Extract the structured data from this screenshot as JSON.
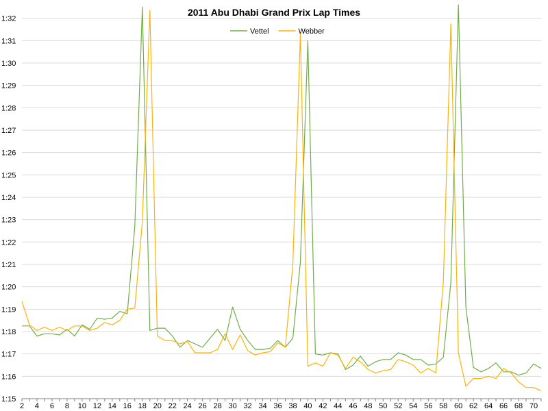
{
  "chart_data": {
    "type": "line",
    "title": "2011 Abu Dhabi Grand Prix Lap Times",
    "xlabel": "",
    "ylabel": "",
    "x_ticks": [
      2,
      4,
      6,
      8,
      10,
      12,
      14,
      16,
      18,
      20,
      22,
      24,
      26,
      28,
      30,
      32,
      34,
      36,
      38,
      40,
      42,
      44,
      46,
      48,
      50,
      52,
      54,
      56,
      58,
      60,
      62,
      64,
      66,
      68,
      70
    ],
    "xlim": [
      2,
      71
    ],
    "y_ticks": [
      "1:15",
      "1:16",
      "1:17",
      "1:18",
      "1:19",
      "1:20",
      "1:21",
      "1:22",
      "1:23",
      "1:24",
      "1:25",
      "1:26",
      "1:27",
      "1:28",
      "1:29",
      "1:30",
      "1:31",
      "1:32"
    ],
    "ylim_seconds": [
      75,
      92.6
    ],
    "y_unit": "lap time (m:ss), values in seconds",
    "grid": true,
    "legend_position": "top-center",
    "x": [
      2,
      3,
      4,
      5,
      6,
      7,
      8,
      9,
      10,
      11,
      12,
      13,
      14,
      15,
      16,
      17,
      18,
      19,
      20,
      21,
      22,
      23,
      24,
      25,
      26,
      27,
      28,
      29,
      30,
      31,
      32,
      33,
      34,
      35,
      36,
      37,
      38,
      39,
      40,
      41,
      42,
      43,
      44,
      45,
      46,
      47,
      48,
      49,
      50,
      51,
      52,
      53,
      54,
      55,
      56,
      57,
      58,
      59,
      60,
      61,
      62,
      63,
      64,
      65,
      66,
      67,
      68,
      69,
      70,
      71
    ],
    "series": [
      {
        "name": "Vettel",
        "color": "#70ad47",
        "values": [
          78.25,
          78.25,
          77.8,
          77.9,
          77.9,
          77.85,
          78.1,
          77.8,
          78.3,
          78.1,
          78.6,
          78.55,
          78.6,
          78.9,
          78.8,
          82.7,
          92.5,
          78.05,
          78.15,
          78.15,
          77.8,
          77.3,
          77.6,
          77.45,
          77.3,
          77.7,
          78.1,
          77.6,
          79.1,
          78.1,
          77.6,
          77.2,
          77.2,
          77.25,
          77.6,
          77.3,
          77.7,
          81.1,
          91.0,
          77.0,
          76.95,
          77.05,
          77.0,
          76.3,
          76.5,
          76.9,
          76.45,
          76.65,
          76.75,
          76.75,
          77.05,
          76.95,
          76.75,
          76.75,
          76.5,
          76.55,
          76.85,
          80.2,
          92.6,
          79.1,
          76.4,
          76.2,
          76.35,
          76.6,
          76.2,
          76.2,
          76.05,
          76.15,
          76.55,
          76.35
        ]
      },
      {
        "name": "Webber",
        "color": "#ffb300",
        "values": [
          79.35,
          78.3,
          78.05,
          78.2,
          78.05,
          78.2,
          78.05,
          78.25,
          78.25,
          78.05,
          78.15,
          78.4,
          78.3,
          78.5,
          79.0,
          79.05,
          82.9,
          92.35,
          77.8,
          77.6,
          77.6,
          77.45,
          77.55,
          77.05,
          77.05,
          77.05,
          77.2,
          77.9,
          77.2,
          77.85,
          77.15,
          76.95,
          77.05,
          77.1,
          77.5,
          77.3,
          81.0,
          91.3,
          76.45,
          76.6,
          76.45,
          77.05,
          76.95,
          76.35,
          76.85,
          76.65,
          76.3,
          76.15,
          76.25,
          76.3,
          76.75,
          76.65,
          76.5,
          76.15,
          76.35,
          76.15,
          80.2,
          91.75,
          77.05,
          75.55,
          75.9,
          75.9,
          76.0,
          75.9,
          76.35,
          76.15,
          75.75,
          75.5,
          75.5,
          75.35
        ]
      }
    ]
  }
}
